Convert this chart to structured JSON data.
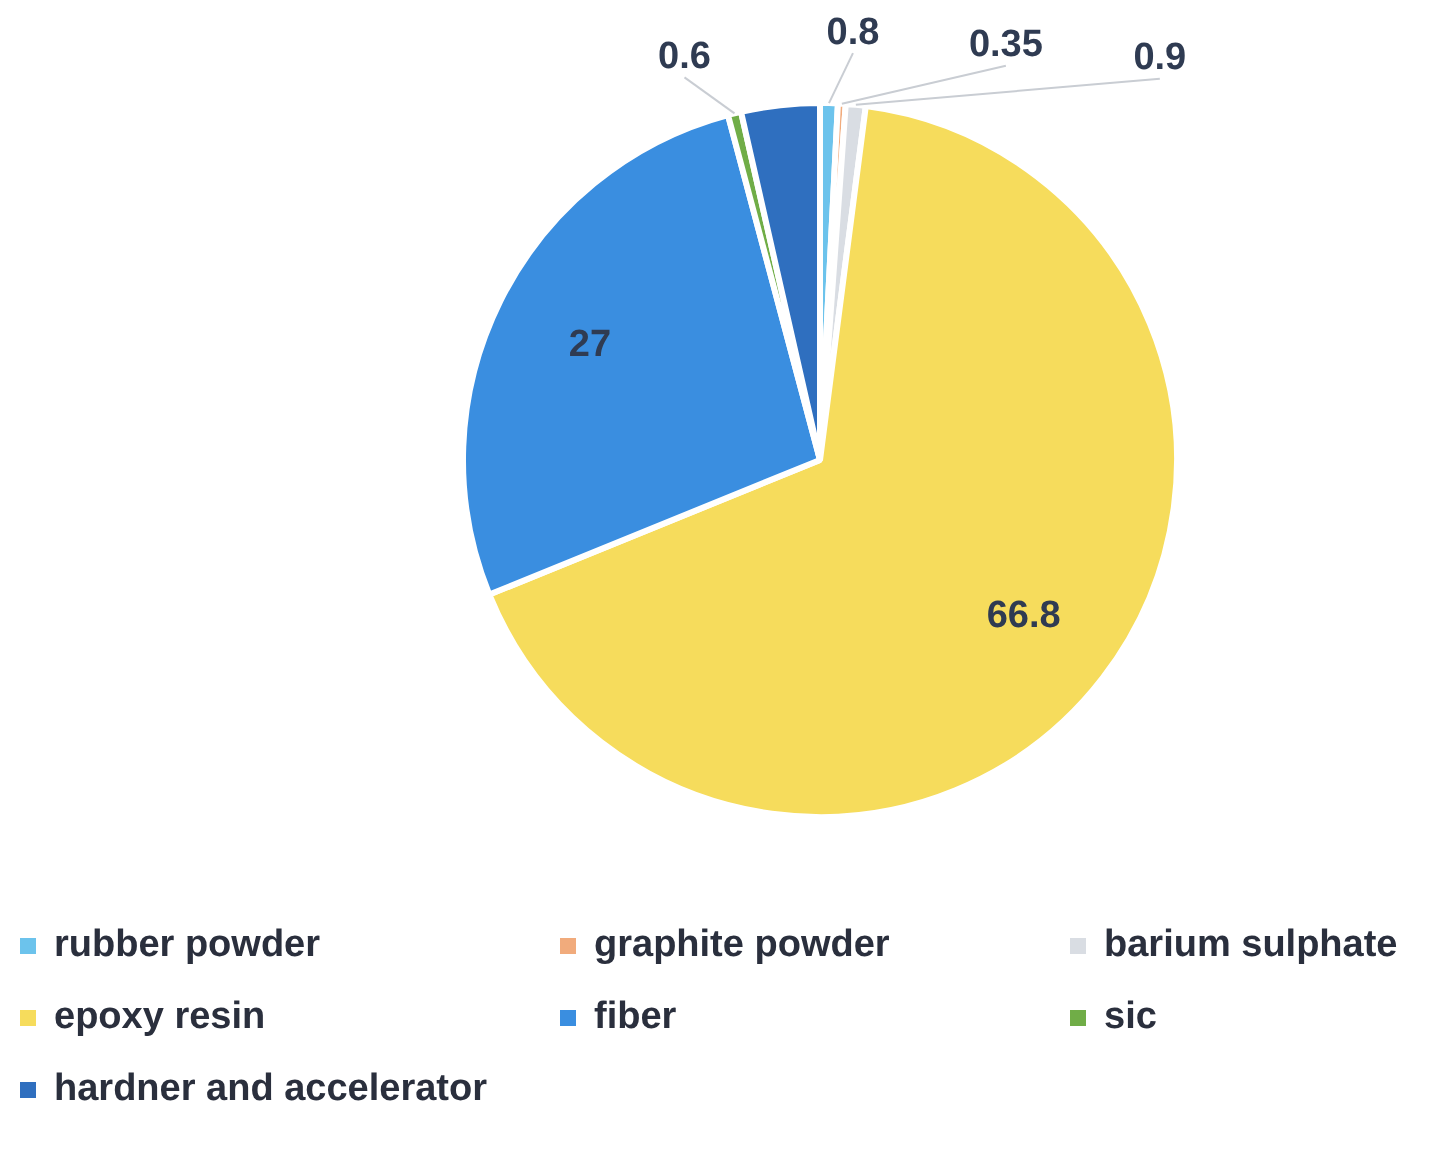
{
  "chart_data": {
    "type": "pie",
    "categories": [
      "rubber powder",
      "graphite powder",
      "barium sulphate",
      "epoxy resin",
      "fiber",
      "sic",
      "hardner and accelerator"
    ],
    "values": [
      0.8,
      0.35,
      0.9,
      66.8,
      27,
      0.6,
      3.55
    ],
    "value_labels": [
      "0.8",
      "0.35",
      "0.9",
      "66.8",
      "27",
      "0.6",
      null
    ],
    "colors": [
      "#6cc3ec",
      "#f1ab7c",
      "#d9dde3",
      "#f6dc5c",
      "#3a8ee0",
      "#70ad47",
      "#2f6fbf"
    ],
    "legend": "bottom"
  }
}
